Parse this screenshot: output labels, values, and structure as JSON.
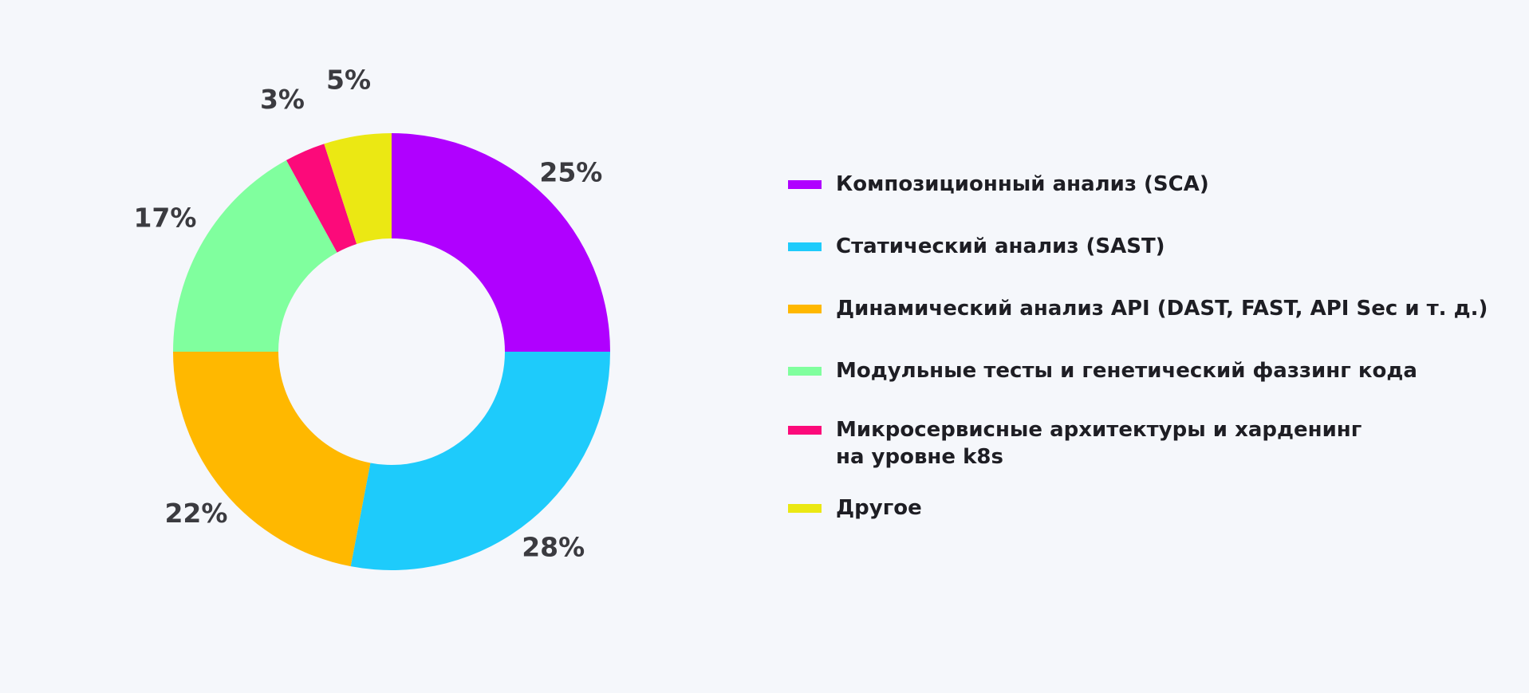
{
  "chart_data": {
    "type": "pie",
    "donut": true,
    "labels": [
      "Композиционный анализ (SCA)",
      "Статический анализ (SAST)",
      "Динамический анализ API (DAST, FAST, API Sec и т. д.)",
      "Модульные тесты и генетический фаззинг кода",
      "Микросервисные архитектуры и харденинг\nна уровне k8s",
      "Другое"
    ],
    "values": [
      25,
      28,
      22,
      17,
      3,
      5
    ],
    "value_labels": [
      "25%",
      "28%",
      "22%",
      "17%",
      "3%",
      "5%"
    ],
    "colors": [
      "#b000ff",
      "#1ecbfb",
      "#ffb800",
      "#80ff9e",
      "#fc0a7a",
      "#ebe813"
    ],
    "start": "top",
    "direction": "clockwise",
    "legend_position": "right"
  }
}
